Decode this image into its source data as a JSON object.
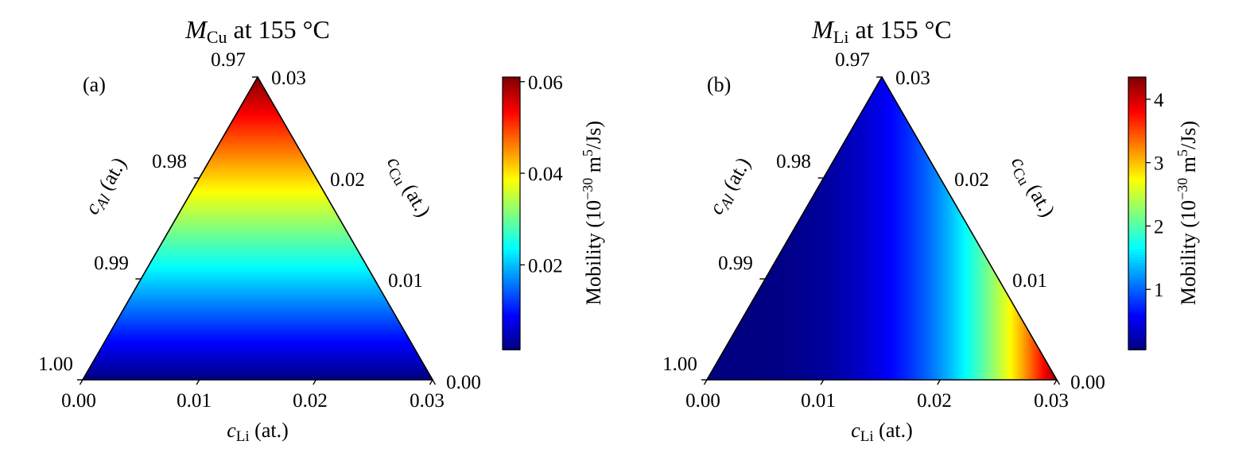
{
  "chart_data": [
    {
      "type": "heatmap",
      "panel_label": "(a)",
      "title": {
        "symbol": "M",
        "subscript": "Cu",
        "rest": " at 155 °C"
      },
      "species": "Cu",
      "axes": {
        "bottom": {
          "var": "c",
          "sub": "Li",
          "unit": " (at.)",
          "ticks": [
            "0.00",
            "0.01",
            "0.02",
            "0.03"
          ]
        },
        "left": {
          "var": "c",
          "sub": "Al",
          "unit": " (at.)",
          "ticks": [
            "1.00",
            "0.99",
            "0.98",
            "0.97"
          ]
        },
        "right": {
          "var": "c",
          "sub": "Cu",
          "unit": " (at.)",
          "ticks": [
            "0.00",
            "0.01",
            "0.02",
            "0.03"
          ]
        }
      },
      "range": {
        "c_li": [
          0,
          0.03
        ],
        "c_cu": [
          0,
          0.03
        ]
      },
      "colorbar": {
        "label": {
          "prefix": "Mobility (10",
          "exp": "−30",
          "mid": " m",
          "exp2": "5",
          "suffix": "/Js)"
        },
        "ticks": [
          "0.02",
          "0.04",
          "0.06"
        ],
        "tick_values": [
          0.02,
          0.04,
          0.06
        ],
        "min": 0.0015,
        "max": 0.061
      },
      "field": {
        "depends_on": "c_cu",
        "min_value": 0.0015,
        "max_value": 0.061
      },
      "colormap": "jet"
    },
    {
      "type": "heatmap",
      "panel_label": "(b)",
      "title": {
        "symbol": "M",
        "subscript": "Li",
        "rest": " at 155 °C"
      },
      "species": "Li",
      "axes": {
        "bottom": {
          "var": "c",
          "sub": "Li",
          "unit": " (at.)",
          "ticks": [
            "0.00",
            "0.01",
            "0.02",
            "0.03"
          ]
        },
        "left": {
          "var": "c",
          "sub": "Al",
          "unit": " (at.)",
          "ticks": [
            "1.00",
            "0.99",
            "0.98",
            "0.97"
          ]
        },
        "right": {
          "var": "c",
          "sub": "Cu",
          "unit": " (at.)",
          "ticks": [
            "0.00",
            "0.01",
            "0.02",
            "0.03"
          ]
        }
      },
      "range": {
        "c_li": [
          0,
          0.03
        ],
        "c_cu": [
          0,
          0.03
        ]
      },
      "colorbar": {
        "label": {
          "prefix": "Mobility (10",
          "exp": "−30",
          "mid": " m",
          "exp2": "5",
          "suffix": "/Js)"
        },
        "ticks": [
          "1",
          "2",
          "3",
          "4"
        ],
        "tick_values": [
          1,
          2,
          3,
          4
        ],
        "min": 0.05,
        "max": 4.35
      },
      "field": {
        "depends_on": "c_li",
        "min_value": 0.05,
        "max_value": 4.3
      },
      "colormap": "jet"
    }
  ]
}
